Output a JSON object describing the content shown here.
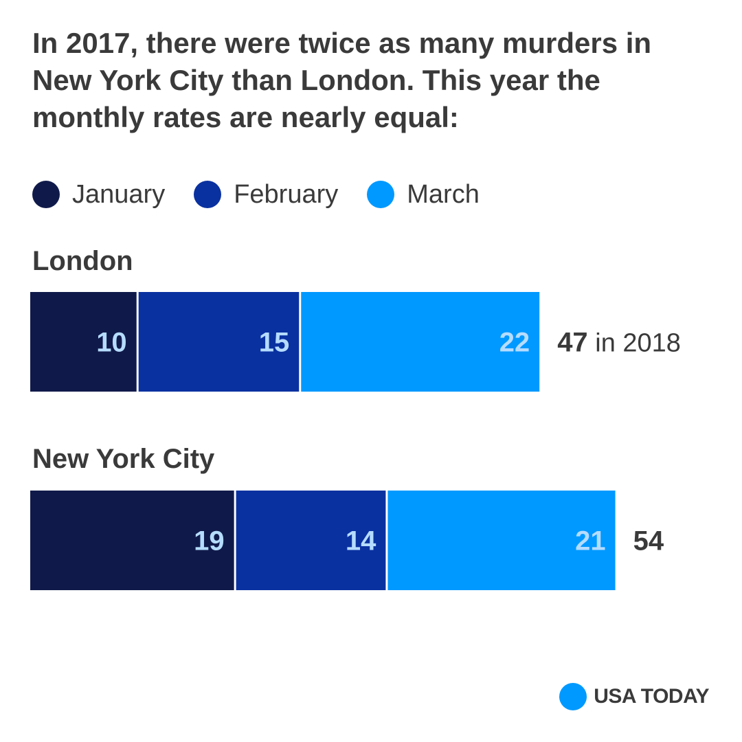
{
  "title": "In 2017, there were twice as many murders in New York City than London. This year the monthly rates are nearly equal:",
  "colors": {
    "January": "#101a4a",
    "February": "#0a31a0",
    "March": "#0099ff",
    "value_label": "#b5dcff",
    "text": "#3a3a3a",
    "brand": "#0099ff"
  },
  "logo": {
    "text": "USA TODAY"
  },
  "chart_data": {
    "type": "bar",
    "orientation": "horizontal",
    "stacked": true,
    "title": "In 2017, there were twice as many murders in New York City than London. This year the monthly rates are nearly equal:",
    "legend": [
      "January",
      "February",
      "March"
    ],
    "legend_position": "top",
    "categories": [
      "London",
      "New York City"
    ],
    "series": [
      {
        "name": "January",
        "values": [
          10,
          19
        ]
      },
      {
        "name": "February",
        "values": [
          15,
          14
        ]
      },
      {
        "name": "March",
        "values": [
          22,
          21
        ]
      }
    ],
    "totals": [
      47,
      54
    ],
    "total_suffixes": [
      "in 2018",
      ""
    ],
    "grid": false
  }
}
